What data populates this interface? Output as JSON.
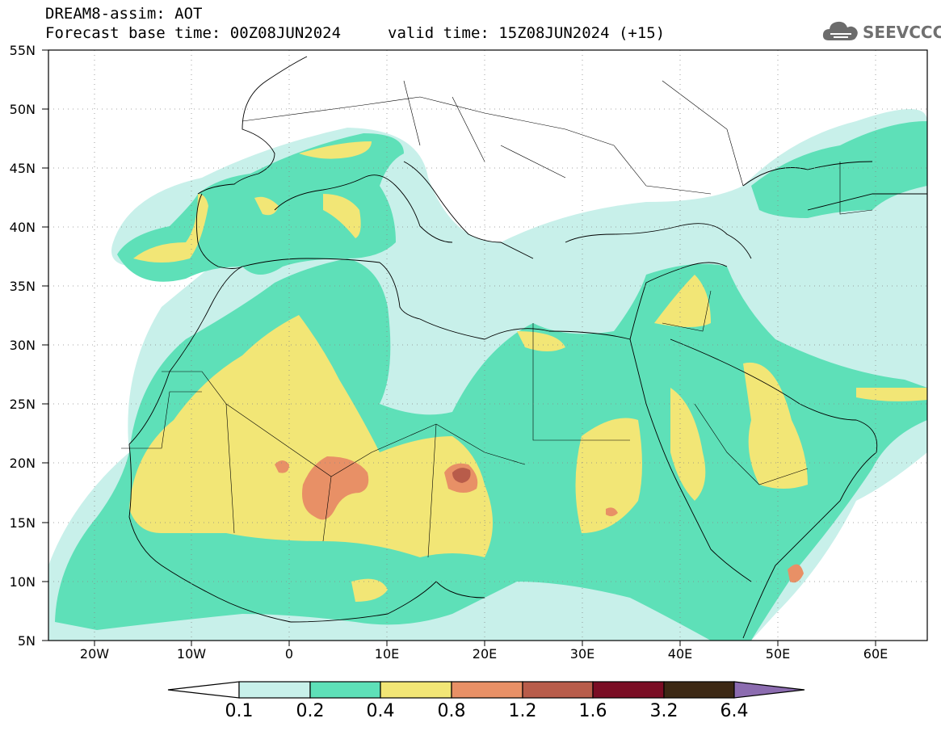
{
  "header": {
    "line1": "DREAM8-assim: AOT",
    "line2": "Forecast base time: 00Z08JUN2024",
    "valid": "valid time: 15Z08JUN2024 (+15)"
  },
  "logo": {
    "text": "SEEVCCC",
    "icon": "cloud-icon"
  },
  "map": {
    "lat_labels": [
      "55N",
      "50N",
      "45N",
      "40N",
      "35N",
      "30N",
      "25N",
      "20N",
      "15N",
      "10N",
      "5N"
    ],
    "lon_labels": [
      "20W",
      "10W",
      "0",
      "10E",
      "20E",
      "30E",
      "40E",
      "50E",
      "60E"
    ],
    "lon_range": [
      -25,
      65
    ],
    "lat_range": [
      5,
      55
    ]
  },
  "colorbar": {
    "labels": [
      "0.1",
      "0.2",
      "0.4",
      "0.8",
      "1.2",
      "1.6",
      "3.2",
      "6.4"
    ],
    "colors": {
      "c01": "#c8f0ea",
      "c02": "#5ee0b8",
      "c04": "#f2e676",
      "c08": "#e89066",
      "c12": "#b85c4a",
      "c16": "#7a0d24",
      "c32": "#3c2814",
      "c64": "#8c6cb0"
    }
  }
}
